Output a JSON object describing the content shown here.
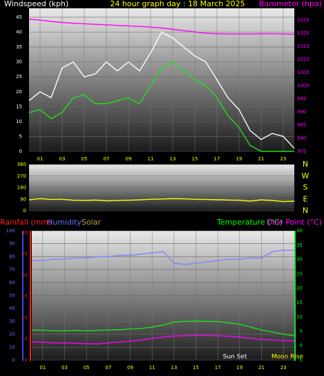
{
  "chart_data": [
    {
      "type": "line",
      "title": "24 hour graph day : 18 March 2025",
      "ylabel": "Windspeed (kph)",
      "y2label": "Barometer (hpa)",
      "x": [
        0,
        1,
        2,
        3,
        4,
        5,
        6,
        7,
        8,
        9,
        10,
        11,
        12,
        13,
        14,
        15,
        16,
        17,
        18,
        19,
        20,
        21,
        22,
        23,
        24
      ],
      "xlim": [
        0,
        24
      ],
      "xticks": [
        {
          "value": 1,
          "label": "01"
        },
        {
          "value": 3,
          "label": "03"
        },
        {
          "value": 5,
          "label": "05"
        },
        {
          "value": 7,
          "label": "07"
        },
        {
          "value": 9,
          "label": "09"
        },
        11,
        13,
        15,
        17,
        19,
        21,
        23
      ],
      "ylim": [
        0,
        48
      ],
      "yticks": [
        0,
        5,
        10,
        15,
        20,
        25,
        30,
        35,
        40,
        45
      ],
      "y2lim": [
        975,
        1029.5
      ],
      "y2ticks": [
        975,
        980,
        985,
        990,
        995,
        1000,
        1005,
        1010,
        1015,
        1020,
        1025
      ],
      "grid": true,
      "series": [
        {
          "color": "#ffffff",
          "values": [
            17,
            20,
            18,
            28,
            30,
            25,
            26,
            30,
            27,
            30,
            27,
            33,
            40,
            38,
            35,
            32,
            30,
            24,
            18,
            14,
            7,
            4,
            6,
            5,
            1
          ]
        },
        {
          "color": "#20e020",
          "values": [
            13,
            14,
            11,
            13,
            18,
            19,
            16,
            16,
            17,
            18,
            16,
            22,
            28,
            30,
            27,
            24,
            22,
            18,
            12,
            8,
            2,
            0,
            0,
            0,
            0
          ]
        },
        {
          "color": "#ff00ff",
          "axis": "y2",
          "values": [
            1025.3,
            1025,
            1024.5,
            1024.1,
            1023.8,
            1023.6,
            1023.4,
            1023.2,
            1023,
            1022.8,
            1022.6,
            1022.3,
            1022,
            1021.5,
            1021,
            1020.5,
            1020,
            1019.8,
            1019.7,
            1019.7,
            1019.7,
            1019.8,
            1019.8,
            1019.7,
            1019.6
          ]
        }
      ]
    },
    {
      "type": "line",
      "x": [
        0,
        1,
        2,
        3,
        4,
        5,
        6,
        7,
        8,
        9,
        10,
        11,
        12,
        13,
        14,
        15,
        16,
        17,
        18,
        19,
        20,
        21,
        22,
        23,
        24
      ],
      "xlim": [
        0,
        24
      ],
      "ylim": [
        0,
        360
      ],
      "yticks": [
        0,
        90,
        180,
        270,
        360
      ],
      "y2ticks": [
        {
          "value": 360,
          "label": "N"
        },
        {
          "value": 270,
          "label": "W"
        },
        {
          "value": 180,
          "label": "S"
        },
        {
          "value": 90,
          "label": "E"
        },
        {
          "value": 0,
          "label": "N"
        }
      ],
      "grid": true,
      "series": [
        {
          "color": "#ffff00",
          "values": [
            85,
            95,
            88,
            90,
            82,
            80,
            84,
            78,
            80,
            82,
            85,
            90,
            92,
            95,
            93,
            90,
            88,
            86,
            84,
            82,
            75,
            85,
            80,
            72,
            75
          ]
        }
      ]
    },
    {
      "type": "line",
      "ylabel": "Rainfall (mm)",
      "y1label": "Humidity",
      "y4label": "Solar",
      "y2label": "Temperature (°C)",
      "y5label": "Dew Point (°C)",
      "annotations": [
        "Sun Set",
        "Moon Rise"
      ],
      "x": [
        0,
        1,
        2,
        3,
        4,
        5,
        6,
        7,
        8,
        9,
        10,
        11,
        12,
        13,
        14,
        15,
        16,
        17,
        18,
        19,
        20,
        21,
        22,
        23,
        24
      ],
      "xlim": [
        0,
        24
      ],
      "xticks": [
        {
          "value": 1,
          "label": "01"
        },
        {
          "value": 3,
          "label": "03"
        },
        {
          "value": 5,
          "label": "05"
        },
        {
          "value": 7,
          "label": "07"
        },
        {
          "value": 9,
          "label": "09"
        },
        11,
        13,
        15,
        17,
        19,
        21,
        23
      ],
      "ylim": [
        0,
        100
      ],
      "yticks": [
        0,
        10,
        20,
        30,
        40,
        50,
        60,
        70,
        80,
        90,
        100
      ],
      "y3lim": [
        0,
        30.5
      ],
      "y3ticks": [
        0,
        5,
        10,
        15,
        20,
        25,
        30
      ],
      "y2lim": [
        -5,
        40
      ],
      "y2ticks": [
        -5,
        0,
        5,
        10,
        15,
        20,
        25,
        30,
        35,
        40
      ],
      "grid": true,
      "series": [
        {
          "color": "#8080ff",
          "values": [
            77,
            77,
            78,
            78,
            79,
            79,
            80,
            80,
            81,
            81,
            82,
            83,
            84,
            75,
            74,
            75,
            76,
            77,
            78,
            78,
            79,
            79,
            84,
            85,
            85
          ]
        },
        {
          "color": "#20e020",
          "axis": "y2",
          "values": [
            5.5,
            5.4,
            5.2,
            5.2,
            5.3,
            5.2,
            5.3,
            5.5,
            5.6,
            5.8,
            6,
            6.5,
            7.2,
            8.2,
            8.5,
            8.6,
            8.5,
            8.4,
            8,
            7.5,
            6.5,
            5.5,
            4.8,
            4,
            3.5
          ]
        },
        {
          "color": "#ff00ff",
          "axis": "y2",
          "values": [
            1.3,
            1.2,
            1,
            1,
            0.9,
            0.7,
            0.6,
            1,
            1.3,
            1.6,
            2,
            2.5,
            3,
            3.4,
            3.5,
            3.6,
            3.6,
            3.5,
            3.3,
            3,
            2.6,
            2.2,
            2,
            1.8,
            1.7
          ]
        }
      ]
    }
  ]
}
